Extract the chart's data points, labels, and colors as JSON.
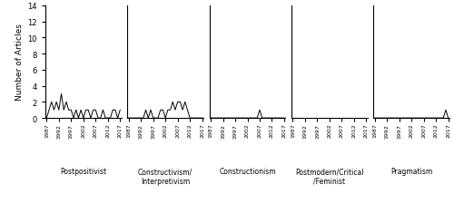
{
  "groups": [
    {
      "label": "Postpositivist",
      "values": [
        0,
        1,
        2,
        1,
        2,
        1,
        3,
        1,
        2,
        1,
        1,
        0,
        1,
        0,
        1,
        0,
        1,
        1,
        0,
        1,
        1,
        0,
        0,
        1,
        0,
        0,
        0,
        1,
        1,
        0,
        1
      ]
    },
    {
      "label": "Constructivism/\nInterpretivism",
      "values": [
        0,
        0,
        0,
        0,
        0,
        0,
        0,
        1,
        0,
        1,
        0,
        0,
        0,
        1,
        1,
        0,
        1,
        1,
        2,
        1,
        2,
        2,
        1,
        2,
        1,
        0,
        0,
        0,
        0,
        0,
        0
      ]
    },
    {
      "label": "Constructionism",
      "values": [
        0,
        0,
        0,
        0,
        0,
        0,
        0,
        0,
        0,
        0,
        0,
        0,
        0,
        0,
        0,
        0,
        0,
        0,
        0,
        0,
        1,
        0,
        0,
        0,
        0,
        0,
        0,
        0,
        0,
        0,
        0
      ]
    },
    {
      "label": "Postmodern/Critical\n/Feminist",
      "values": [
        0,
        0,
        0,
        0,
        0,
        0,
        0,
        0,
        0,
        0,
        0,
        0,
        0,
        0,
        0,
        0,
        0,
        0,
        0,
        0,
        0,
        0,
        0,
        0,
        0,
        0,
        0,
        0,
        0,
        0,
        0
      ]
    },
    {
      "label": "Pragmatism",
      "values": [
        0,
        0,
        0,
        0,
        0,
        0,
        0,
        0,
        0,
        0,
        0,
        0,
        0,
        0,
        0,
        0,
        0,
        0,
        0,
        0,
        0,
        0,
        0,
        0,
        0,
        0,
        0,
        0,
        0,
        1,
        0
      ]
    }
  ],
  "ylim": [
    0,
    14
  ],
  "yticks": [
    0,
    2,
    4,
    6,
    8,
    10,
    12,
    14
  ],
  "ylabel": "Number of Articles",
  "year_ticks": [
    0,
    5,
    10,
    15,
    20,
    25,
    30
  ],
  "tick_labels": [
    "1987",
    "1992",
    "1997",
    "2002",
    "2007",
    "2012",
    "2017"
  ],
  "line_color": "#000000",
  "background_color": "#ffffff"
}
